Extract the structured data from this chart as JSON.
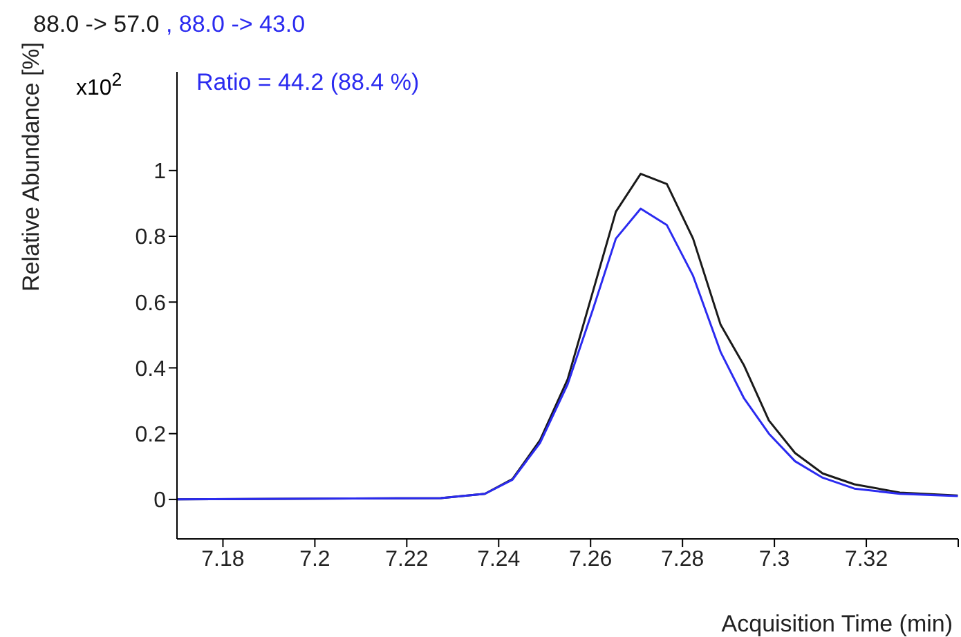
{
  "chart_data": {
    "type": "line",
    "xlabel": "Acquisition Time (min)",
    "ylabel": "Relative Abundance [%]",
    "annotations": [
      "x10$^{2}$",
      "Ratio = 44.2 (88.4 %)",
      ","
    ],
    "xlim": [
      7.17,
      7.34
    ],
    "xticks": [
      7.18,
      7.2,
      7.22,
      7.24,
      7.26,
      7.28,
      7.3,
      7.32,
      {
        "value": 7.34,
        "label": null
      }
    ],
    "ylim": [
      -0.12,
      1.3
    ],
    "yticks": [
      0,
      0.2,
      0.4,
      0.6,
      0.8,
      1
    ],
    "grid": false,
    "marker": "none",
    "line_style": "solid",
    "x": [
      7.17,
      7.2274,
      7.237,
      7.243,
      7.249,
      7.255,
      7.2604,
      7.2655,
      7.2709,
      7.2766,
      7.2823,
      7.2883,
      7.2934,
      7.2988,
      7.3045,
      7.3105,
      7.3174,
      7.3273,
      7.3399
    ],
    "series": [
      {
        "name": "88.0 -> 57.0",
        "color": "#1a1a1a",
        "values": [
          0,
          0.004,
          0.017,
          0.062,
          0.18,
          0.365,
          0.627,
          0.875,
          0.99,
          0.959,
          0.793,
          0.531,
          0.407,
          0.24,
          0.141,
          0.079,
          0.046,
          0.021,
          0.012
        ]
      },
      {
        "name": "88.0 -> 43.0",
        "color": "#2b2bf0",
        "values": [
          0,
          0.004,
          0.017,
          0.06,
          0.172,
          0.35,
          0.573,
          0.793,
          0.884,
          0.834,
          0.68,
          0.448,
          0.307,
          0.2,
          0.116,
          0.066,
          0.033,
          0.017,
          0.01
        ]
      }
    ]
  }
}
